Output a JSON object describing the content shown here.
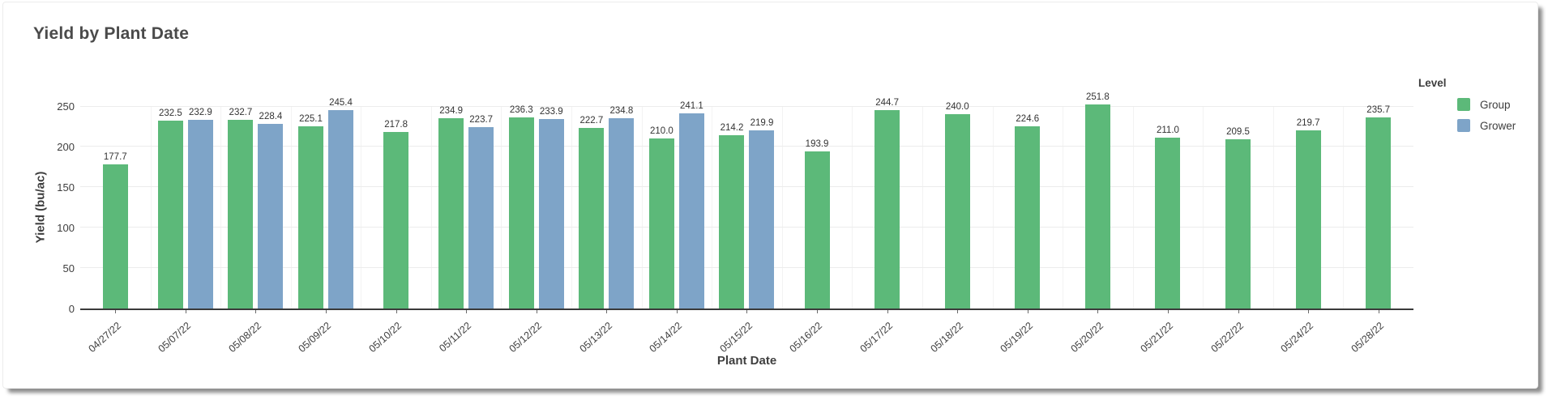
{
  "title": "Yield by Plant Date",
  "colors": {
    "group": "#5cb979",
    "grower": "#7ea4c8",
    "axis_line": "#3a3a3a",
    "gridline": "#ececec",
    "text": "#3e3e3e"
  },
  "legend": {
    "title": "Level",
    "items": [
      {
        "label": "Group",
        "color": "#5cb979"
      },
      {
        "label": "Grower",
        "color": "#7ea4c8"
      }
    ]
  },
  "chart_data": {
    "type": "bar",
    "title": "Yield by Plant Date",
    "xlabel": "Plant Date",
    "ylabel": "Yield (bu/ac)",
    "ylim": [
      0,
      250
    ],
    "yticks": [
      0,
      50,
      100,
      150,
      200,
      250
    ],
    "grid": true,
    "value_labels": true,
    "legend_position": "right",
    "legend_title": "Level",
    "categories": [
      "04/27/22",
      "05/07/22",
      "05/08/22",
      "05/09/22",
      "05/10/22",
      "05/11/22",
      "05/12/22",
      "05/13/22",
      "05/14/22",
      "05/15/22",
      "05/16/22",
      "05/17/22",
      "05/18/22",
      "05/19/22",
      "05/20/22",
      "05/21/22",
      "05/22/22",
      "05/24/22",
      "05/28/22"
    ],
    "series": [
      {
        "name": "Group",
        "color": "#5cb979",
        "values": [
          177.7,
          232.5,
          232.7,
          225.1,
          217.8,
          234.9,
          236.3,
          222.7,
          210.0,
          214.2,
          193.9,
          244.7,
          240.0,
          224.6,
          251.8,
          211.0,
          209.5,
          219.7,
          235.7
        ]
      },
      {
        "name": "Grower",
        "color": "#7ea4c8",
        "values": [
          null,
          232.9,
          228.4,
          245.4,
          null,
          223.7,
          233.9,
          234.8,
          241.1,
          219.9,
          null,
          null,
          null,
          null,
          null,
          null,
          null,
          null,
          null
        ]
      }
    ]
  }
}
